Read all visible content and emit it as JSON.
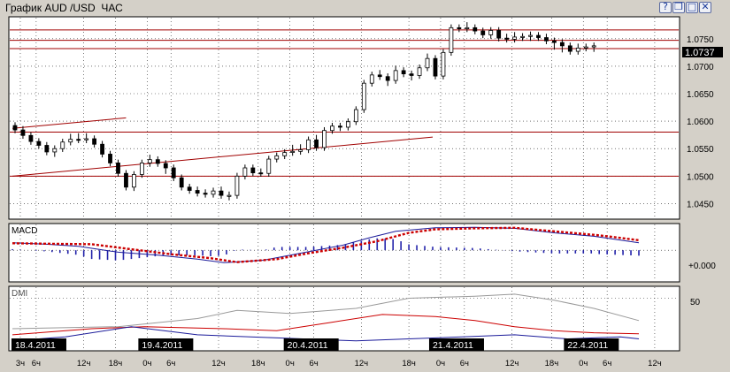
{
  "window": {
    "title": "График AUD /USD  ЧАС",
    "help_icon": "help-icon",
    "restore_icon": "restore-icon",
    "maximize_icon": "maximize-icon",
    "close_icon": "close-icon"
  },
  "colors": {
    "background": "#d4d0c8",
    "panel_bg": "#ffffff",
    "grid": "#222222",
    "candle_up": "#ffffff",
    "candle_down": "#000000",
    "level_line": "#a00000",
    "macd_line": "#1b1b9a",
    "macd_signal": "#cc0000",
    "macd_hist": "#2222aa",
    "dmi_plus": "#1b1b9a",
    "dmi_minus": "#cc0000",
    "adx": "#999999",
    "price_tag": "#000000"
  },
  "chart_data": [
    {
      "type": "candlestick",
      "title": "График AUD /USD  ЧАС",
      "ylim": [
        1.0425,
        1.0785
      ],
      "y_ticks": [
        "1.0450",
        "1.0500",
        "1.0550",
        "1.0600",
        "1.0650",
        "1.0700",
        "1.0750"
      ],
      "current_price": "1.0737",
      "horizontal_levels": [
        1.0766,
        1.0747,
        1.0732,
        1.058,
        1.05
      ],
      "trend_lines": [
        {
          "from": [
            0,
            1.0587
          ],
          "to": [
            43,
            1.0606
          ]
        },
        {
          "from": [
            0,
            1.05
          ],
          "to": [
            159,
            1.0571
          ]
        }
      ],
      "x_count": 238,
      "close": [
        1.0592,
        1.0586,
        1.0584,
        1.0585,
        1.0579,
        1.0574,
        1.0572,
        1.0567,
        1.0563,
        1.0561,
        1.0562,
        1.0556,
        1.0551,
        1.0545,
        1.0544,
        1.0541,
        1.0547,
        1.055,
        1.056,
        1.056,
        1.0562,
        1.0569,
        1.0571,
        1.0567,
        1.057,
        1.0572,
        1.0566,
        1.0572,
        1.0572,
        1.0568,
        1.0564,
        1.0559,
        1.0558,
        1.0552,
        1.0543,
        1.054,
        1.0539,
        1.0533,
        1.0524,
        1.0509,
        1.0505,
        1.0505,
        1.0493,
        1.0484,
        1.048,
        1.0479,
        1.0493,
        1.0503,
        1.0508,
        1.0518,
        1.0524,
        1.0533,
        1.0523,
        1.053,
        1.0523,
        1.0524,
        1.0523,
        1.0518,
        1.051,
        1.0515,
        1.0508,
        1.0506,
        1.0497,
        1.0491,
        1.0482,
        1.048,
        1.0474,
        1.0476,
        1.0474,
        1.0475,
        1.0472,
        1.0469,
        1.047,
        1.047,
        1.0467,
        1.047,
        1.0471,
        1.0473,
        1.0475,
        1.0472,
        1.0465,
        1.0462,
        1.0466,
        1.0465,
        1.0475,
        1.0487,
        1.05,
        1.0506,
        1.051,
        1.0515,
        1.0513,
        1.051,
        1.0506,
        1.0508,
        1.0507,
        1.0505,
        1.0513,
        1.0523,
        1.0531,
        1.0533,
        1.0533,
        1.0537,
        1.054,
        1.0539,
        1.0543,
        1.055,
        1.0551,
        1.0545,
        1.0548,
        1.0552,
        1.0548,
        1.0548,
        1.0558,
        1.0566,
        1.0569,
        1.0564,
        1.0552,
        1.056,
        1.0575,
        1.0583,
        1.0585,
        1.059,
        1.0591,
        1.0591,
        1.0588,
        1.0589,
        1.0593,
        1.0592,
        1.0599,
        1.0603,
        1.0612,
        1.0621,
        1.0647,
        1.0661,
        1.0669,
        1.068,
        1.0681,
        1.0684,
        1.0687,
        1.0681,
        1.0681,
        1.0671,
        1.067,
        1.0674,
        1.0683,
        1.0695,
        1.0692,
        1.0687,
        1.069,
        1.0686,
        1.0682,
        1.068,
        1.0683,
        1.0688,
        1.0691,
        1.0697,
        1.071,
        1.0717,
        1.0714,
        1.0704,
        1.0695,
        1.0682,
        1.069,
        1.071,
        1.0725,
        1.0745,
        1.0759,
        1.077,
        1.0768,
        1.0769,
        1.0768,
        1.0774,
        1.077,
        1.077,
        1.0769,
        1.0769,
        1.0764,
        1.0759,
        1.0757,
        1.0757,
        1.0756,
        1.0762,
        1.0765,
        1.0761,
        1.0757,
        1.0751,
        1.0749,
        1.0753,
        1.0749,
        1.0751,
        1.0756,
        1.0753,
        1.0752,
        1.0754,
        1.0754,
        1.0757,
        1.0752,
        1.0756,
        1.0756,
        1.0754,
        1.0752,
        1.0753,
        1.0748,
        1.0746,
        1.0736,
        1.0738,
        1.0743,
        1.074,
        1.0731,
        1.0737,
        1.0735,
        1.0731,
        1.0727,
        1.0734,
        1.0735,
        1.0733,
        1.0733,
        1.0734,
        1.0735,
        1.0732,
        1.0737
      ]
    },
    {
      "type": "line",
      "title": "MACD",
      "ylim": [
        -0.006,
        0.005
      ],
      "y_ticks": [
        "+0.000"
      ],
      "series": [
        {
          "role": "macd",
          "points": [
            [
              0,
              0.0015
            ],
            [
              13,
              0.0012
            ],
            [
              25,
              0.0008
            ],
            [
              40,
              -0.0004
            ],
            [
              55,
              -0.001
            ],
            [
              70,
              -0.0018
            ],
            [
              80,
              -0.0025
            ],
            [
              95,
              -0.002
            ],
            [
              110,
              -0.0005
            ],
            [
              125,
              0.001
            ],
            [
              135,
              0.0025
            ],
            [
              145,
              0.0038
            ],
            [
              160,
              0.0045
            ],
            [
              175,
              0.0046
            ],
            [
              190,
              0.0044
            ],
            [
              205,
              0.0035
            ],
            [
              220,
              0.0028
            ],
            [
              237,
              0.0015
            ]
          ]
        },
        {
          "role": "signal",
          "points": [
            [
              0,
              0.0014
            ],
            [
              15,
              0.0013
            ],
            [
              30,
              0.0012
            ],
            [
              45,
              0.0002
            ],
            [
              60,
              -0.0008
            ],
            [
              75,
              -0.0016
            ],
            [
              85,
              -0.0024
            ],
            [
              100,
              -0.0018
            ],
            [
              112,
              -0.0006
            ],
            [
              125,
              0.0005
            ],
            [
              138,
              0.0018
            ],
            [
              150,
              0.0035
            ],
            [
              160,
              0.0042
            ],
            [
              175,
              0.0044
            ],
            [
              190,
              0.0045
            ],
            [
              205,
              0.0038
            ],
            [
              222,
              0.003
            ],
            [
              237,
              0.002
            ]
          ]
        }
      ]
    },
    {
      "type": "line",
      "title": "DMI",
      "ylim": [
        0,
        60
      ],
      "y_ticks": [
        "50"
      ],
      "series": [
        {
          "role": "adx",
          "points": [
            [
              0,
              20
            ],
            [
              40,
              22
            ],
            [
              70,
              30
            ],
            [
              85,
              38
            ],
            [
              105,
              35
            ],
            [
              130,
              40
            ],
            [
              150,
              50
            ],
            [
              175,
              52
            ],
            [
              190,
              54
            ],
            [
              205,
              48
            ],
            [
              220,
              40
            ],
            [
              237,
              28
            ]
          ]
        },
        {
          "role": "minus_di",
          "points": [
            [
              0,
              14
            ],
            [
              30,
              20
            ],
            [
              50,
              22
            ],
            [
              80,
              20
            ],
            [
              100,
              18
            ],
            [
              120,
              26
            ],
            [
              140,
              34
            ],
            [
              160,
              32
            ],
            [
              175,
              28
            ],
            [
              190,
              22
            ],
            [
              205,
              18
            ],
            [
              220,
              16
            ],
            [
              237,
              15
            ]
          ]
        },
        {
          "role": "plus_di",
          "points": [
            [
              0,
              8
            ],
            [
              20,
              12
            ],
            [
              45,
              22
            ],
            [
              70,
              14
            ],
            [
              90,
              12
            ],
            [
              110,
              10
            ],
            [
              130,
              8
            ],
            [
              150,
              10
            ],
            [
              170,
              12
            ],
            [
              190,
              14
            ],
            [
              210,
              10
            ],
            [
              230,
              12
            ],
            [
              237,
              10
            ]
          ]
        }
      ]
    }
  ],
  "x_axis": {
    "date_labels": [
      "18.4.2011",
      "19.4.2011",
      "20.4.2011",
      "21.4.2011",
      "22.4.2011"
    ],
    "date_label_index": [
      2,
      50,
      105,
      160,
      211
    ],
    "hour_labels": [
      "3ч",
      "6ч",
      "12ч",
      "18ч",
      "0ч",
      "6ч",
      "12ч",
      "18ч",
      "0ч",
      "6ч",
      "12ч",
      "18ч",
      "0ч",
      "6ч",
      "12ч",
      "18ч",
      "0ч",
      "6ч",
      "12ч"
    ],
    "hour_label_index": [
      3,
      9,
      27,
      39,
      51,
      60,
      78,
      93,
      105,
      114,
      132,
      150,
      162,
      171,
      189,
      204,
      216,
      225,
      243
    ]
  }
}
